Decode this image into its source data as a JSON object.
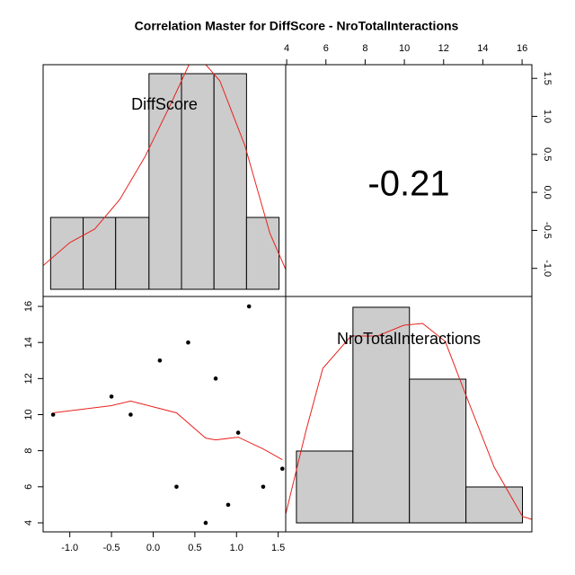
{
  "chart_data": {
    "type": "pairs",
    "title": "Correlation Master for DiffScore - NroTotalInteractions",
    "variables": [
      "DiffScore",
      "NroTotalInteractions"
    ],
    "correlation": -0.21,
    "diffscore_hist": {
      "bins": [
        -1.23,
        -0.84,
        -0.45,
        -0.05,
        0.34,
        0.73,
        1.12,
        1.51
      ],
      "values": [
        1,
        1,
        1,
        3,
        3,
        3,
        1
      ],
      "xlim": [
        -1.32,
        1.59
      ],
      "ylim": [
        -0.1,
        3.125
      ],
      "color": "#cccccc",
      "density": {
        "x": [
          -1.35,
          -1.0,
          -0.7,
          -0.4,
          -0.1,
          0.2,
          0.5,
          0.8,
          1.1,
          1.4,
          1.6
        ],
        "y": [
          0.3,
          0.65,
          0.84,
          1.25,
          1.84,
          2.55,
          3.3,
          2.9,
          2.0,
          0.78,
          0.25
        ],
        "color": "#e8221e"
      }
    },
    "nro_hist": {
      "bins": [
        4,
        7,
        10,
        13,
        16
      ],
      "values": [
        2,
        6,
        4,
        1
      ],
      "xlim": [
        3.43,
        16.5
      ],
      "ylim": [
        -0.25,
        6.3
      ],
      "color": "#cccccc",
      "density": {
        "x": [
          3.4,
          4.5,
          5.4,
          6.9,
          8.3,
          9.7,
          10.7,
          11.9,
          13.0,
          14.5,
          16.0,
          16.8
        ],
        "y": [
          0.18,
          2.55,
          4.3,
          5.2,
          5.2,
          5.5,
          5.55,
          5.05,
          3.55,
          1.55,
          0.18,
          0.05
        ],
        "color": "#e8221e"
      }
    },
    "scatter": {
      "x": [
        -1.2,
        -0.5,
        -0.27,
        0.08,
        0.28,
        0.42,
        0.63,
        0.75,
        0.9,
        1.02,
        1.15,
        1.32,
        1.55
      ],
      "y": [
        10,
        11,
        10,
        13,
        6,
        14,
        4,
        12,
        5,
        9,
        16,
        6,
        7
      ],
      "xlim": [
        -1.32,
        1.59
      ],
      "ylim": [
        3.5,
        16.55
      ],
      "point_color": "#000000",
      "xticks": [
        {
          "value": -1,
          "label": "-1.0"
        },
        -0.5,
        {
          "value": 0,
          "label": "0.0"
        },
        0.5,
        {
          "value": 1,
          "label": "1.0"
        },
        1.5
      ],
      "yticks": [
        4,
        6,
        8,
        10,
        12,
        14,
        16
      ],
      "smooth": {
        "x": [
          -1.2,
          -0.5,
          -0.27,
          0.28,
          0.63,
          0.75,
          1.02,
          1.32,
          1.55
        ],
        "y": [
          10.1,
          10.5,
          10.75,
          10.1,
          8.7,
          8.6,
          8.75,
          8.1,
          7.5
        ],
        "color": "#e8221e"
      }
    },
    "top_axis": {
      "xlim": [
        3.95,
        16.5
      ],
      "xticks": [
        4,
        6,
        8,
        10,
        12,
        14,
        16
      ]
    },
    "right_axis": {
      "ylim": [
        -1.37,
        1.68
      ],
      "yticks": [
        {
          "value": -1,
          "label": "-1.0"
        },
        -0.5,
        {
          "value": 0,
          "label": "0.0"
        },
        0.5,
        {
          "value": 1,
          "label": "1.0"
        },
        1.5
      ]
    }
  }
}
